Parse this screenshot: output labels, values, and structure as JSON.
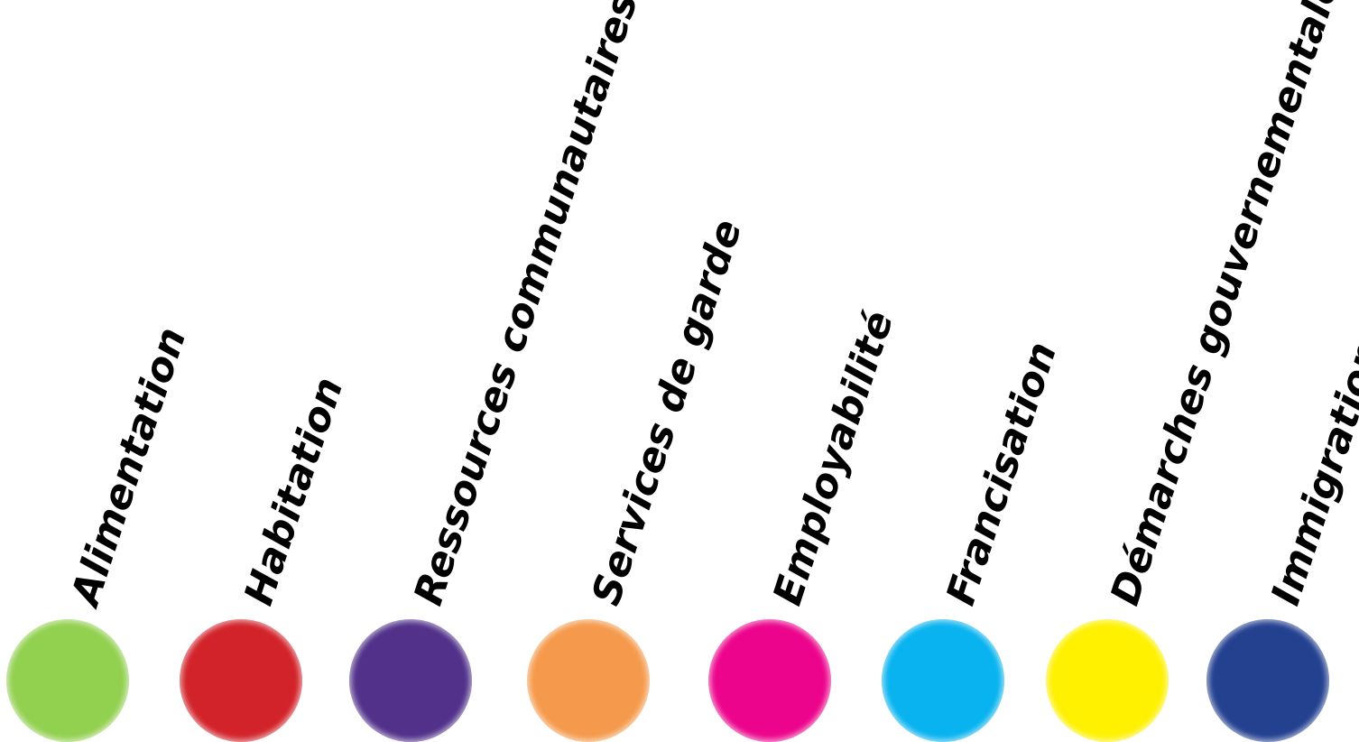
{
  "categories": [
    {
      "label": "Alimentation",
      "color": "#92d050"
    },
    {
      "label": "Habitation",
      "color": "#d2232a"
    },
    {
      "label": "Ressources communautaires",
      "color": "#51318a"
    },
    {
      "label": "Services de garde",
      "color": "#f59a4c"
    },
    {
      "label": "Employabilité",
      "color": "#ec058c"
    },
    {
      "label": "Francisation",
      "color": "#08b3ef"
    },
    {
      "label": "Démarches gouvernementales",
      "color": "#fff100"
    },
    {
      "label": "Immigration",
      "color": "#244190"
    }
  ]
}
